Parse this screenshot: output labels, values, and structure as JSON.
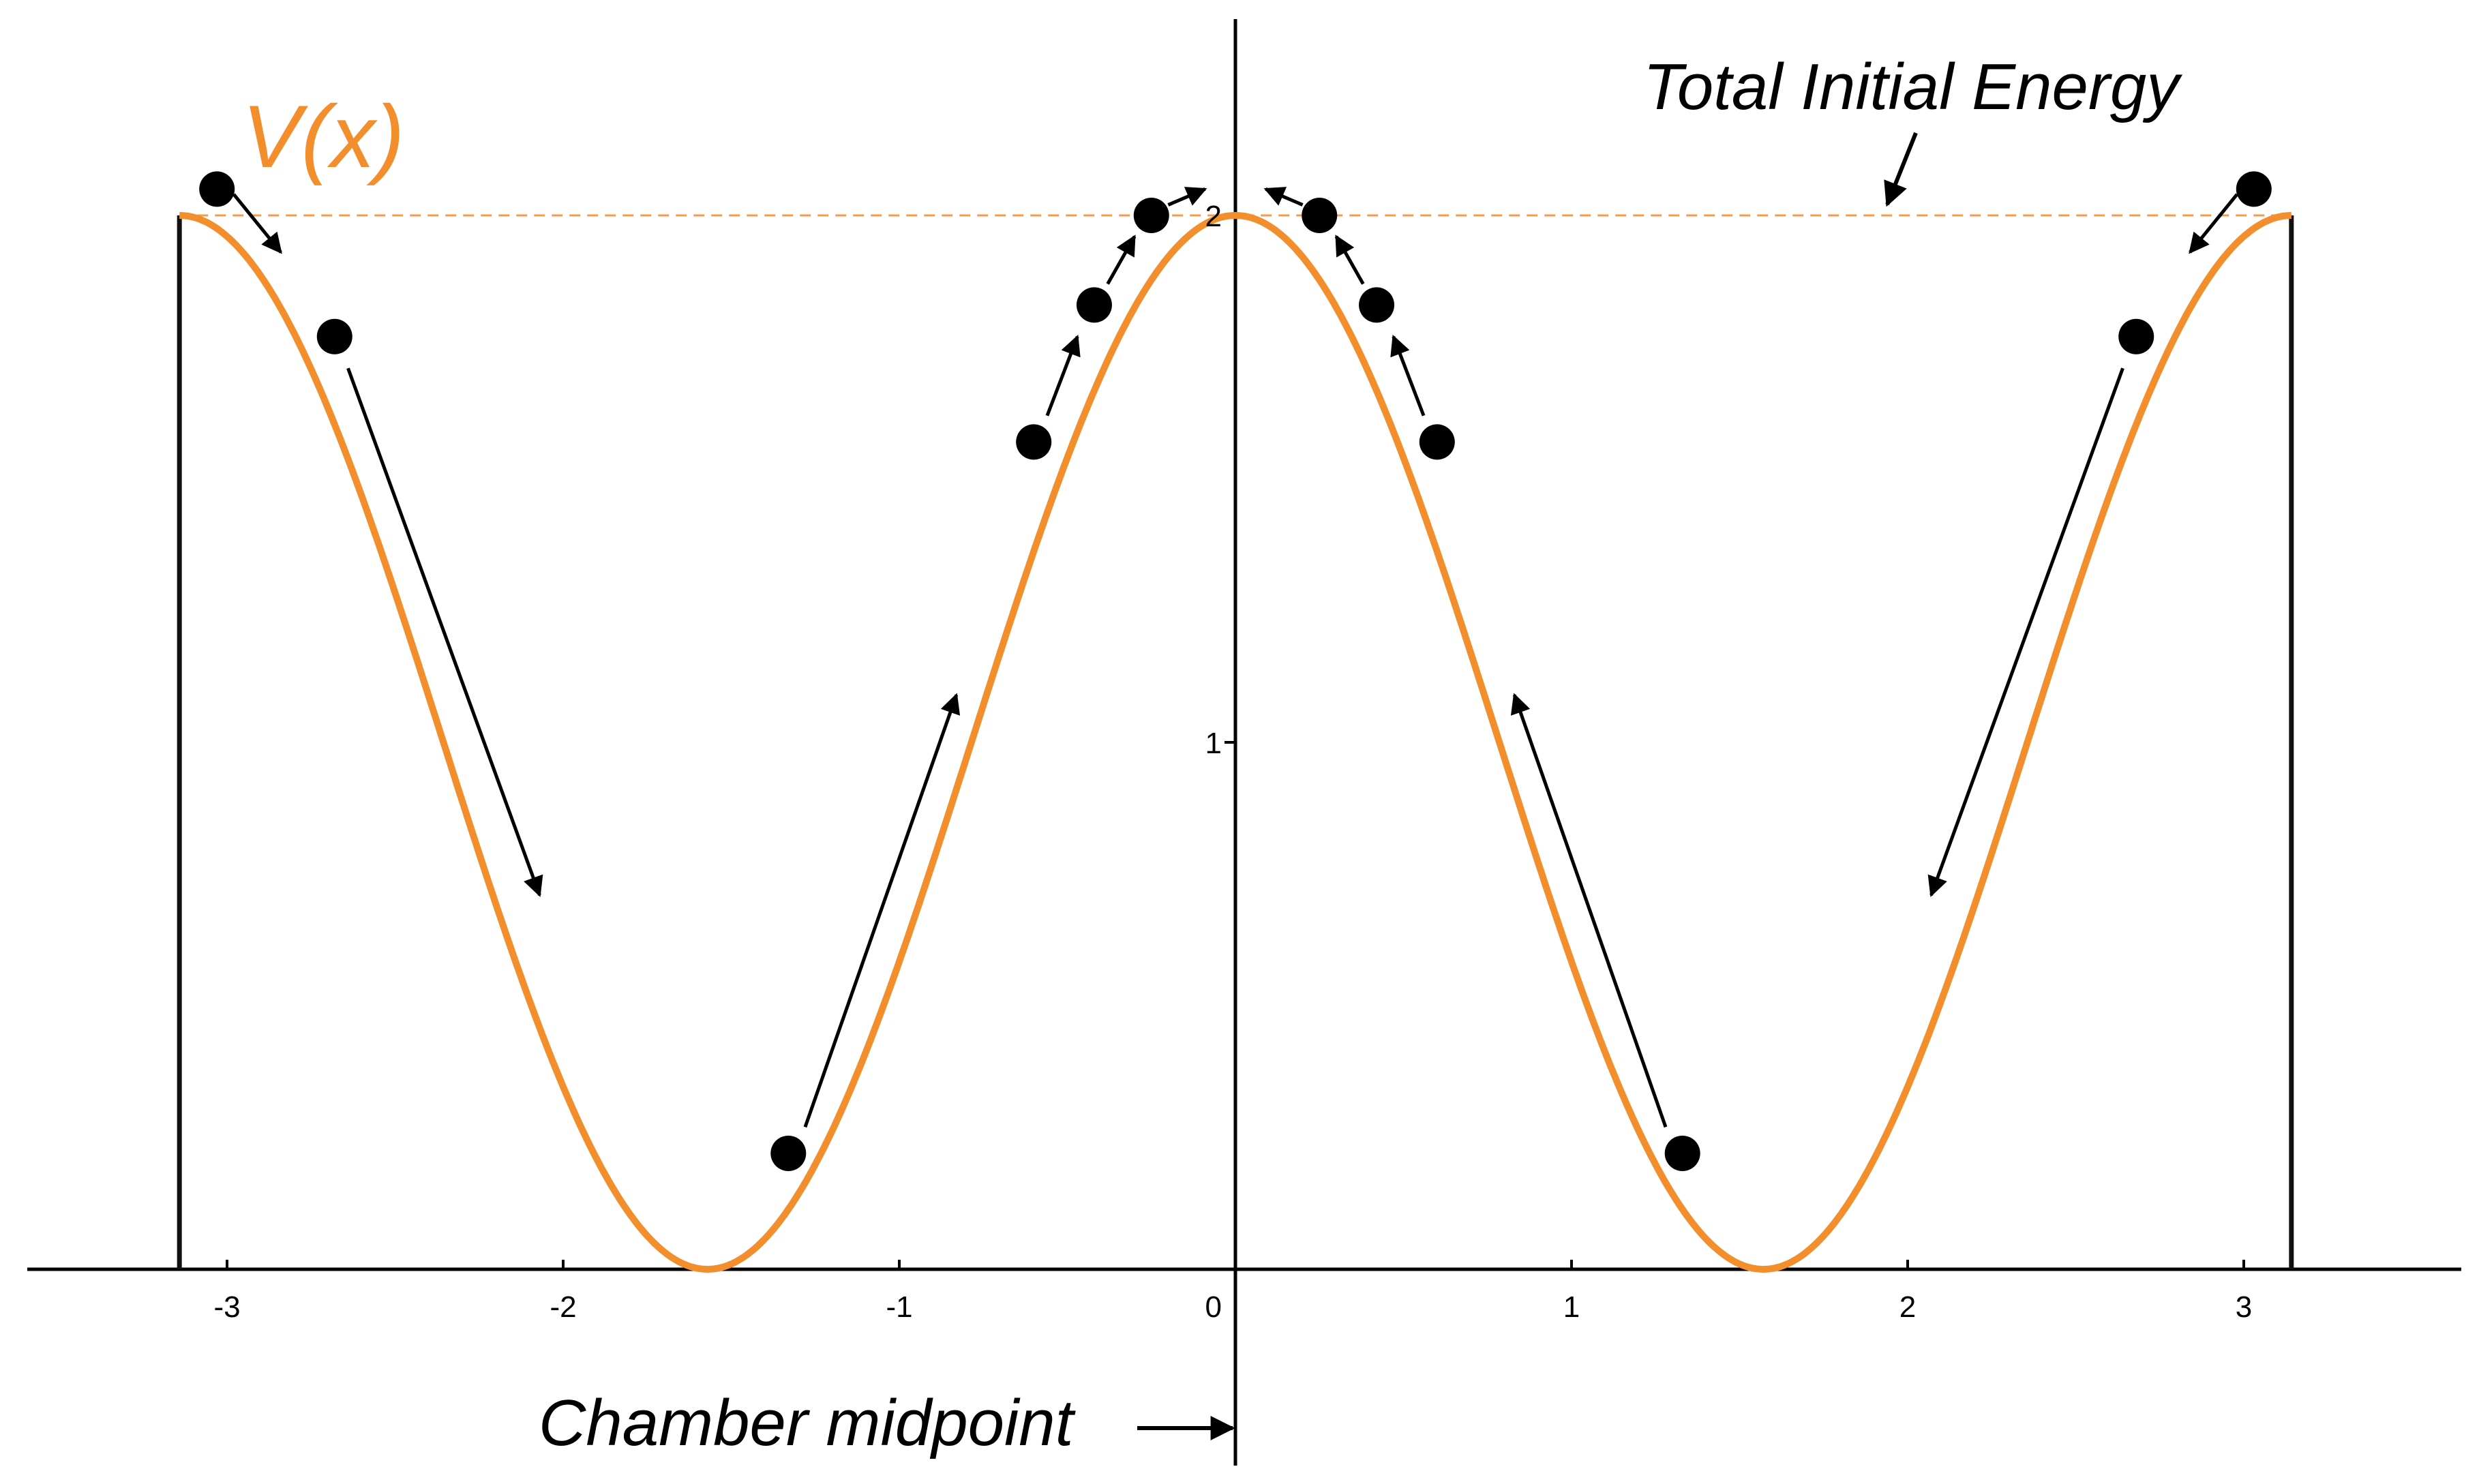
{
  "chart_data": {
    "type": "line",
    "title": "",
    "xlabel": "",
    "ylabel": "",
    "xlim": [
      -3.6,
      3.6
    ],
    "ylim": [
      0,
      2.2
    ],
    "x_ticks": [
      -3,
      -2,
      -1,
      0,
      1,
      2,
      3
    ],
    "y_ticks": [
      1,
      2
    ],
    "grid": false,
    "colors": {
      "curve": "#f28e2c",
      "energy_line": "#f28e2c",
      "ink": "#000000"
    },
    "series": [
      {
        "name": "V(x)",
        "function": "1 + cos(2x)",
        "domain": [
          -3.1416,
          3.1416
        ]
      },
      {
        "name": "Total Initial Energy",
        "style": "dashed",
        "y": 2
      }
    ],
    "walls_x": [
      -3.1416,
      3.1416
    ],
    "particles": [
      {
        "x": -3.03,
        "y": 2.05
      },
      {
        "x": -2.68,
        "y": 1.77
      },
      {
        "x": -1.33,
        "y": 0.22
      },
      {
        "x": -0.6,
        "y": 1.57
      },
      {
        "x": -0.42,
        "y": 1.83
      },
      {
        "x": -0.25,
        "y": 2.0
      },
      {
        "x": 0.25,
        "y": 2.0
      },
      {
        "x": 0.42,
        "y": 1.83
      },
      {
        "x": 0.6,
        "y": 1.57
      },
      {
        "x": 1.33,
        "y": 0.22
      },
      {
        "x": 2.68,
        "y": 1.77
      },
      {
        "x": 3.03,
        "y": 2.05
      }
    ],
    "motion_arrows": [
      {
        "from": [
          -2.98,
          2.04
        ],
        "to": [
          -2.84,
          1.93
        ]
      },
      {
        "from": [
          -2.64,
          1.71
        ],
        "to": [
          -2.07,
          0.71
        ]
      },
      {
        "from": [
          -1.28,
          0.27
        ],
        "to": [
          -0.83,
          1.09
        ]
      },
      {
        "from": [
          -0.56,
          1.62
        ],
        "to": [
          -0.47,
          1.77
        ]
      },
      {
        "from": [
          -0.38,
          1.87
        ],
        "to": [
          -0.3,
          1.96
        ]
      },
      {
        "from": [
          -0.2,
          2.02
        ],
        "to": [
          -0.09,
          2.05
        ]
      },
      {
        "from": [
          0.2,
          2.02
        ],
        "to": [
          0.09,
          2.05
        ]
      },
      {
        "from": [
          0.38,
          1.87
        ],
        "to": [
          0.3,
          1.96
        ]
      },
      {
        "from": [
          0.56,
          1.62
        ],
        "to": [
          0.47,
          1.77
        ]
      },
      {
        "from": [
          1.28,
          0.27
        ],
        "to": [
          0.83,
          1.09
        ]
      },
      {
        "from": [
          2.64,
          1.71
        ],
        "to": [
          2.07,
          0.71
        ]
      },
      {
        "from": [
          2.98,
          2.04
        ],
        "to": [
          2.84,
          1.93
        ]
      }
    ],
    "annotations": {
      "curve_label": "V(x)",
      "energy_label": "Total Initial Energy",
      "midpoint_label": "Chamber midpoint"
    }
  }
}
